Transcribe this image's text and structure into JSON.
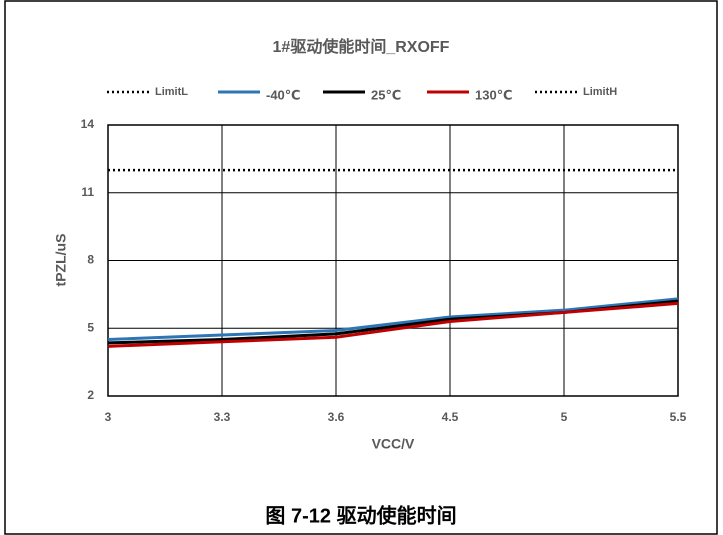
{
  "chart_data": {
    "type": "line",
    "title": "1#驱动使能时间_RXOFF",
    "x_label": "VCC/V",
    "y_label": "tPZL/uS",
    "caption": "图 7-12 驱动使能时间",
    "categories": [
      "3",
      "3.3",
      "3.6",
      "4.5",
      "5",
      "5.5"
    ],
    "series": [
      {
        "name": "LimitL",
        "color": "#000000",
        "style": "dotted",
        "values": [
          null,
          null,
          null,
          null,
          null,
          null
        ]
      },
      {
        "name": "-40℃",
        "color": "#2e75b6",
        "style": "solid",
        "values": [
          4.5,
          4.7,
          4.9,
          5.5,
          5.8,
          6.3
        ]
      },
      {
        "name": "25℃",
        "color": "#000000",
        "style": "solid",
        "values": [
          4.35,
          4.5,
          4.75,
          5.4,
          5.7,
          6.2
        ]
      },
      {
        "name": "130℃",
        "color": "#c00000",
        "style": "solid",
        "values": [
          4.2,
          4.4,
          4.6,
          5.3,
          5.7,
          6.1
        ]
      },
      {
        "name": "LimitH",
        "color": "#000000",
        "style": "dotted",
        "values": [
          12,
          12,
          12,
          12,
          12,
          12
        ]
      }
    ],
    "ylim": [
      2,
      14
    ],
    "yticks": [
      2,
      5,
      8,
      11,
      14
    ],
    "grid": true,
    "legend": "top"
  }
}
